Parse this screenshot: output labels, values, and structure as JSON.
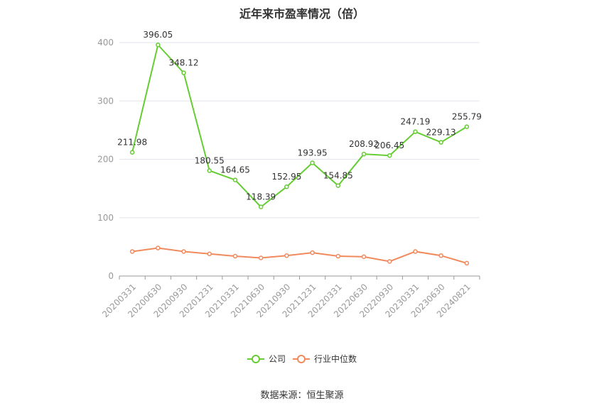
{
  "chart_data": {
    "type": "line",
    "title": "近年来市盈率情况（倍）",
    "categories": [
      "20200331",
      "20200630",
      "20200930",
      "20201231",
      "20210331",
      "20210630",
      "20210930",
      "20211231",
      "20220331",
      "20220630",
      "20220930",
      "20230331",
      "20230630",
      "20240821"
    ],
    "ylim": [
      0,
      400
    ],
    "yticks": [
      0,
      100,
      200,
      300,
      400
    ],
    "grid": true,
    "legend_position": "bottom",
    "series": [
      {
        "name": "公司",
        "color": "#66cc33",
        "values": [
          211.98,
          396.05,
          348.12,
          180.55,
          164.65,
          118.39,
          152.95,
          193.95,
          154.85,
          208.92,
          206.45,
          247.19,
          229.13,
          255.79
        ],
        "labels": [
          "211.98",
          "396.05",
          "348.12",
          "180.55",
          "164.65",
          "118.39",
          "152.95",
          "193.95",
          "154.85",
          "208.92",
          "206.45",
          "247.19",
          "229.13",
          "255.79"
        ]
      },
      {
        "name": "行业中位数",
        "color": "#f08a5d",
        "values": [
          42,
          48,
          42,
          38,
          34,
          31,
          35,
          40,
          34,
          33,
          25,
          42,
          35,
          22
        ]
      }
    ]
  },
  "footer": {
    "source": "数据来源：恒生聚源"
  }
}
